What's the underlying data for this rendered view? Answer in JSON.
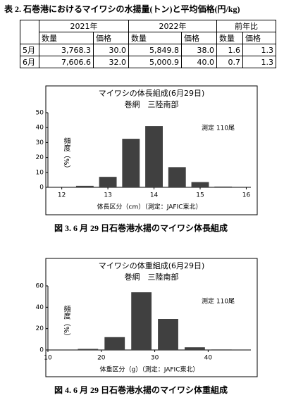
{
  "table": {
    "title": "表 2. 石巻港におけるマイワシの水揚量(トン)と平均価格(円/kg)",
    "columns": [
      "2021年",
      "2022年",
      "前年比"
    ],
    "subcolumns": [
      "数量",
      "価格",
      "数量",
      "価格",
      "数量",
      "価格"
    ],
    "rows": [
      [
        "5月",
        "3,768.3",
        "30.0",
        "5,849.8",
        "38.0",
        "1.6",
        "1.3"
      ],
      [
        "6月",
        "7,606.6",
        "32.0",
        "5,000.9",
        "40.0",
        "0.7",
        "1.3"
      ]
    ]
  },
  "chart_data": [
    {
      "type": "bar",
      "title": "マイワシの体長組成(6月29日)",
      "subtitle": "巻網　三陸南部",
      "note": "測定 110尾",
      "x_label": "体長区分（cm）（測定：JAFIC東北）",
      "y_label": "頻度（%）",
      "caption": "図 3. 6 月 29 日石巻港水揚のマイワシ体長組成",
      "x": [
        12.5,
        13,
        13.5,
        14,
        14.5,
        15,
        15.5
      ],
      "values": [
        1,
        7,
        32.5,
        41,
        13.5,
        3.5,
        0.5
      ],
      "color": "#404040",
      "xlim": [
        11.7,
        16.1
      ],
      "xticks": [
        12,
        13,
        14,
        15,
        16
      ],
      "ylim": [
        0,
        50
      ],
      "yticks": [
        0,
        10,
        20,
        30,
        40,
        50
      ]
    },
    {
      "type": "bar",
      "title": "マイワシの体重組成(6月29日)",
      "subtitle": "巻網　三陸南部",
      "note": "測定 110尾",
      "x_label": "体重区分（g）（測定：JAFIC東北）",
      "y_label": "頻度（%）",
      "caption": "図 4. 6 月 29 日石巻港水揚のマイワシ体重組成",
      "x": [
        17.5,
        22.5,
        27.5,
        32.5,
        37.5,
        42.5
      ],
      "values": [
        1,
        12,
        54,
        29,
        2.5,
        0.5
      ],
      "color": "#404040",
      "xlim": [
        10,
        48
      ],
      "xticks": [
        10,
        20,
        30,
        40
      ],
      "ylim": [
        0,
        60
      ],
      "yticks": [
        0,
        20,
        40,
        60
      ]
    }
  ]
}
